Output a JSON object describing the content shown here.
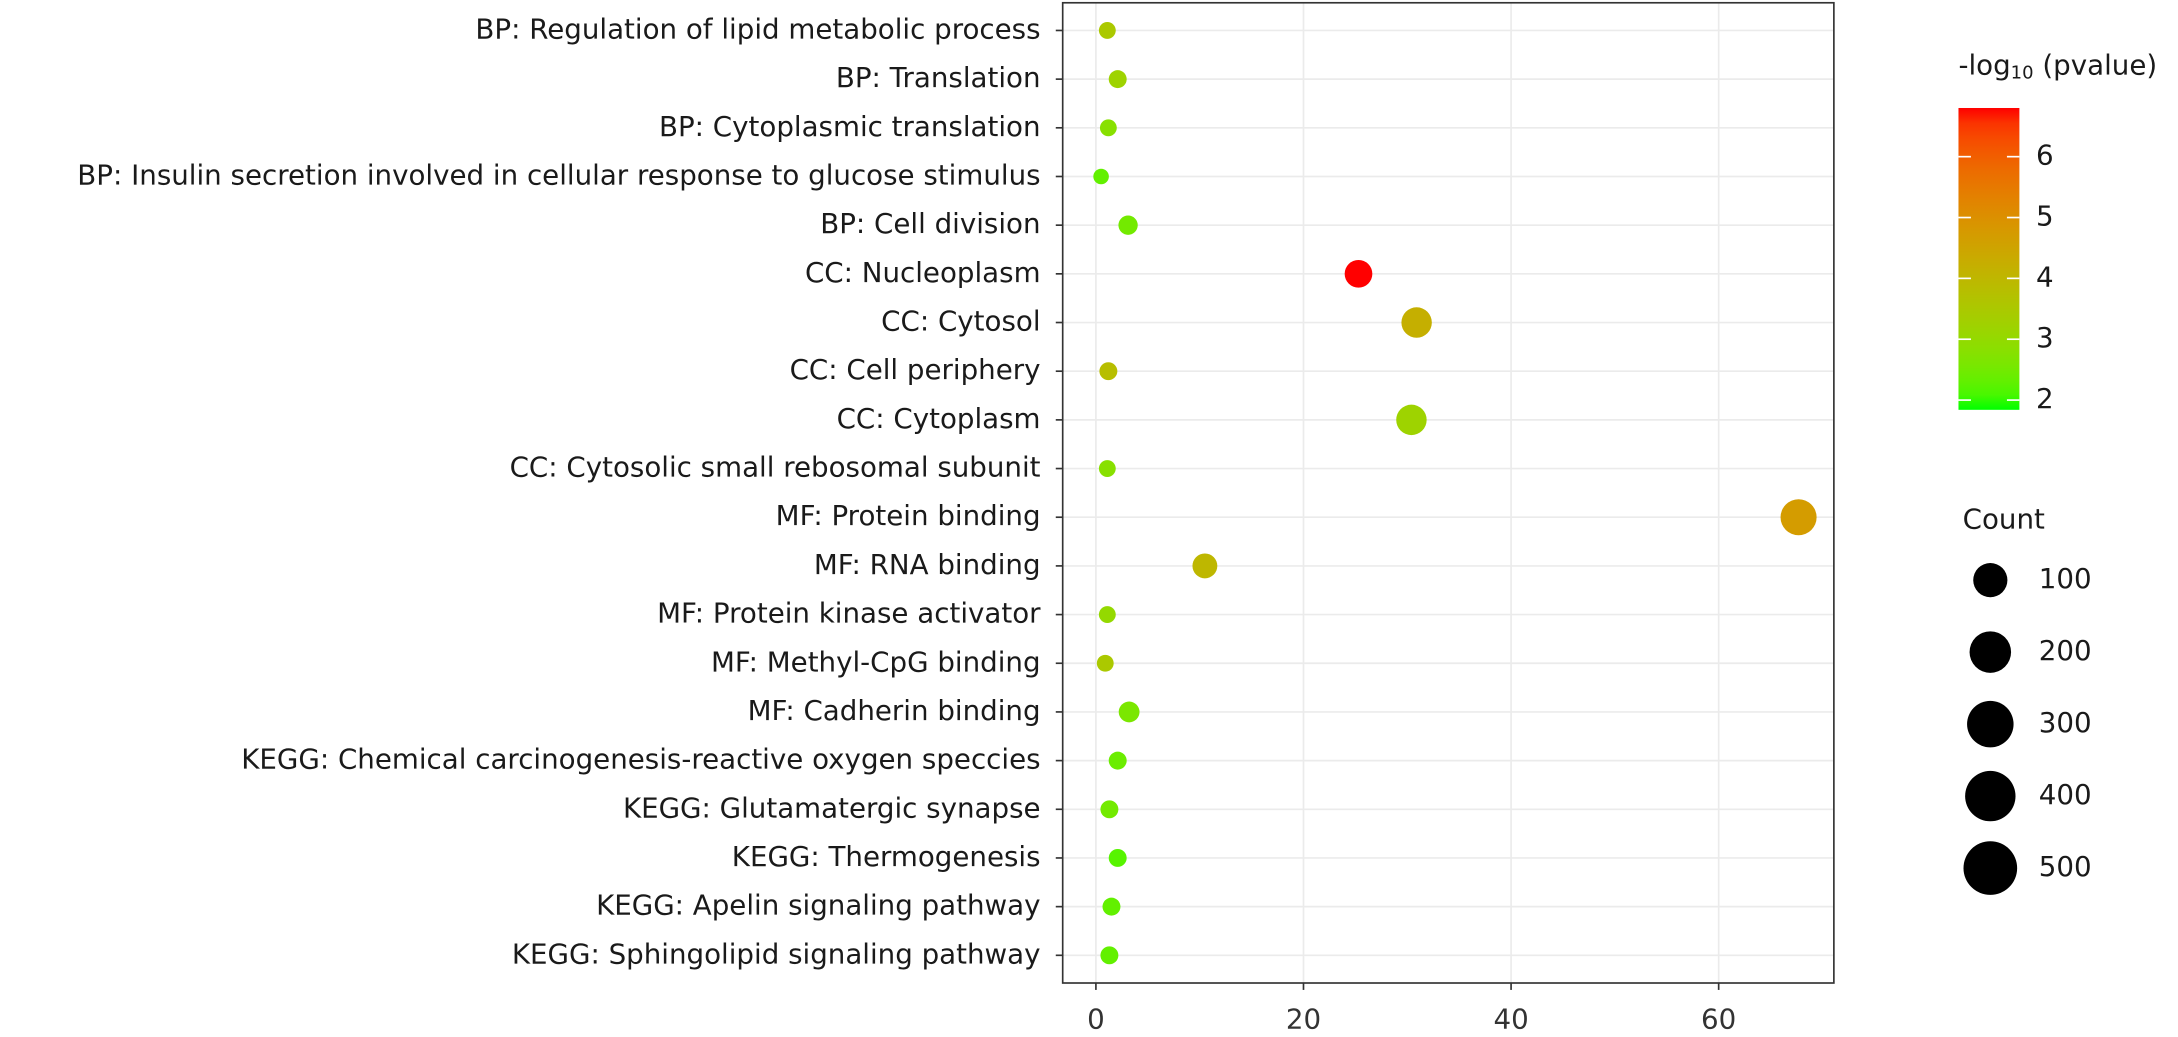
{
  "chart_data": {
    "type": "dot",
    "categories": [
      "BP: Regulation of lipid metabolic process",
      "BP: Translation",
      "BP: Cytoplasmic translation",
      "BP: Insulin secretion involved in cellular response to glucose stimulus",
      "BP: Cell division",
      "CC: Nucleoplasm",
      "CC: Cytosol",
      "CC: Cell periphery",
      "CC: Cytoplasm",
      "CC: Cytosolic small rebosomal subunit",
      "MF: Protein binding",
      "MF: RNA binding",
      "MF: Protein kinase activator",
      "MF: Methyl-CpG binding",
      "MF: Cadherin binding",
      "KEGG: Chemical carcinogenesis-reactive oxygen speccies",
      "KEGG: Glutamatergic synapse",
      "KEGG: Thermogenesis",
      "KEGG: Apelin signaling pathway",
      "KEGG: Sphingolipid signaling pathway"
    ],
    "values": [
      1.1,
      2.1,
      1.2,
      0.5,
      3.1,
      25.3,
      30.9,
      1.2,
      30.4,
      1.1,
      67.7,
      10.5,
      1.1,
      0.9,
      3.2,
      2.1,
      1.3,
      2.1,
      1.5,
      1.3
    ],
    "color_values": [
      3.5,
      3.2,
      2.8,
      2.3,
      2.5,
      6.8,
      4.2,
      3.8,
      3.2,
      2.8,
      4.7,
      4.0,
      3.0,
      3.5,
      2.6,
      2.4,
      2.5,
      2.2,
      2.3,
      2.3
    ],
    "sizes": [
      8,
      10,
      8,
      6,
      13,
      47,
      66,
      10,
      66,
      8,
      121,
      32,
      8,
      8,
      17,
      10,
      10,
      10,
      10,
      10
    ],
    "xlim": [
      -3.2,
      71.1
    ],
    "xticks": [
      0,
      20,
      40,
      60
    ],
    "grid": true,
    "color_scale": {
      "title": "-log",
      "title_sub": "10",
      "title_end": " (pvalue)",
      "low": "#00ff00",
      "high": "#ff0000",
      "lim": [
        1.84,
        6.8
      ],
      "ticks": [
        2,
        3,
        4,
        5,
        6
      ]
    },
    "size_legend": {
      "title": "Count",
      "values": [
        100,
        200,
        300,
        400,
        500
      ],
      "color": "#000000"
    }
  }
}
